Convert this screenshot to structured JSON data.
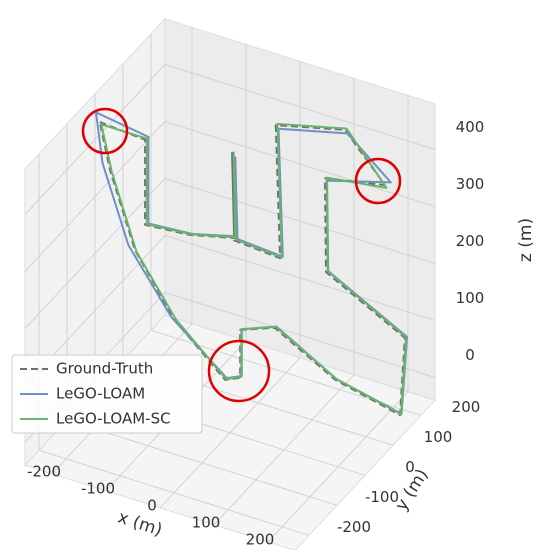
{
  "chart_data": {
    "type": "line3d",
    "xlabel": "x (m)",
    "ylabel": "y (m)",
    "zlabel": "z (m)",
    "xlim": [
      -250,
      250
    ],
    "ylim": [
      -250,
      250
    ],
    "zlim": [
      -40,
      480
    ],
    "xticks": [
      -200,
      -100,
      0,
      100,
      200
    ],
    "yticks": [
      -200,
      -100,
      0,
      100,
      200
    ],
    "zticks": [
      0,
      100,
      200,
      300,
      400
    ],
    "grid": true,
    "legend": "lower left",
    "series": [
      {
        "name": "Ground-Truth",
        "color": "#6e6e6e",
        "dashed": true,
        "x": [
          -293,
          -209,
          -209,
          -126,
          -44,
          -48,
          -44,
          41,
          33,
          161,
          235,
          124,
          126,
          272,
          263,
          143,
          31,
          -33,
          -33,
          -61,
          -154,
          -228,
          -274,
          -293
        ],
        "y": [
          100,
          100,
          100,
          100,
          100,
          100,
          100,
          100,
          100,
          100,
          100,
          100,
          100,
          100,
          100,
          100,
          100,
          100,
          100,
          100,
          100,
          100,
          100,
          100
        ],
        "z": [
          365,
          359,
          210,
          217,
          236,
          384,
          232,
          226,
          457,
          487,
          412,
          391,
          227,
          155,
          17,
          43,
          101,
          78,
          -6,
          -18,
          59,
          160,
          287,
          365
        ]
      },
      {
        "name": "LeGO-LOAM",
        "color": "#6f8fc7",
        "dashed": false,
        "x": [
          -300,
          -203,
          -203,
          -122,
          -40,
          -42,
          -38,
          46,
          38,
          166,
          246,
          128,
          130,
          276,
          266,
          146,
          34,
          -30,
          -30,
          -58,
          -160,
          -240,
          -288,
          -300
        ],
        "y": [
          100,
          100,
          100,
          100,
          100,
          100,
          100,
          100,
          100,
          100,
          100,
          100,
          100,
          100,
          100,
          100,
          100,
          100,
          100,
          100,
          100,
          100,
          100,
          100
        ],
        "z": [
          380,
          366,
          214,
          220,
          240,
          378,
          236,
          230,
          452,
          482,
          420,
          388,
          230,
          158,
          20,
          45,
          104,
          80,
          -2,
          -14,
          62,
          165,
          295,
          380
        ]
      },
      {
        "name": "LeGO-LOAM-SC",
        "color": "#6ab46a",
        "dashed": false,
        "x": [
          -290,
          -206,
          -206,
          -123,
          -42,
          -45,
          -41,
          44,
          36,
          164,
          238,
          127,
          129,
          274,
          265,
          145,
          33,
          -31,
          -31,
          -59,
          -152,
          -225,
          -271,
          -290
        ],
        "y": [
          100,
          100,
          100,
          100,
          100,
          100,
          100,
          100,
          100,
          100,
          100,
          100,
          100,
          100,
          100,
          100,
          100,
          100,
          100,
          100,
          100,
          100,
          100,
          100
        ],
        "z": [
          362,
          362,
          212,
          219,
          238,
          386,
          234,
          228,
          460,
          490,
          408,
          393,
          229,
          157,
          19,
          45,
          103,
          80,
          -4,
          -16,
          61,
          158,
          285,
          362
        ]
      }
    ]
  }
}
